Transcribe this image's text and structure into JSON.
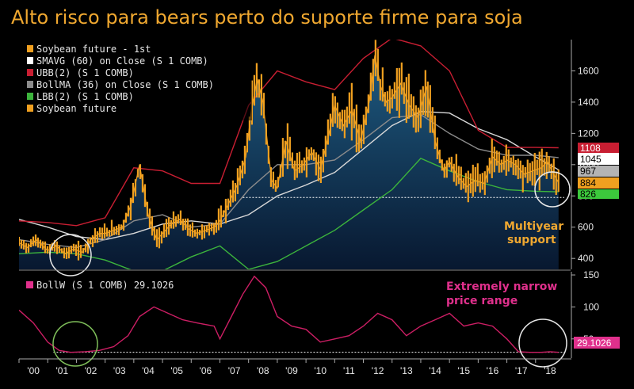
{
  "title": "Alto risco para bears perto do suporte firme para soja",
  "colors": {
    "price": "#f0a020",
    "area_top": "#1e5a80",
    "area_bottom": "#081830",
    "sma": "#d8d8d8",
    "ubb": "#c81e32",
    "bollma": "#8c8c8c",
    "lbb": "#3cb43c",
    "bollw": "#cc1e64",
    "annot_orange": "#f0a830",
    "annot_pink": "#e0308c"
  },
  "legend": {
    "items": [
      {
        "label": "Soybean future - 1st",
        "color": "#f0a020"
      },
      {
        "label": "SMAVG (60) on Close (S 1 COMB)",
        "color": "#ffffff"
      },
      {
        "label": "UBB(2) (S 1 COMB)",
        "color": "#c81e32"
      },
      {
        "label": "BollMA (36) on Close (S 1 COMB)",
        "color": "#8c8c8c"
      },
      {
        "label": "LBB(2) (S 1 COMB)",
        "color": "#3cb43c"
      },
      {
        "label": "Soybean future",
        "color": "#f0a020"
      }
    ],
    "lower": "BollW (S 1 COMB) 29.1026"
  },
  "annotations": {
    "support": [
      "Multiyear",
      "support"
    ],
    "narrow": [
      "Extremely narrow",
      "price range"
    ]
  },
  "chart_data": [
    {
      "type": "line",
      "x_labels": [
        "'00",
        "'01",
        "'02",
        "'03",
        "'04",
        "'05",
        "'06",
        "'07",
        "'08",
        "'09",
        "'10",
        "'11",
        "'12",
        "'13",
        "'14",
        "'15",
        "'16",
        "'17",
        "'18"
      ],
      "x_range": [
        2000.0,
        2019.0
      ],
      "ylim": [
        330,
        1800
      ],
      "y_ticks": [
        400,
        600,
        800,
        1000,
        1200,
        1400,
        1600
      ],
      "price_support_level": 790,
      "last_values": {
        "ubb": "1108",
        "bollma": "1045",
        "sma": "967",
        "price": "884",
        "lbb": "826"
      },
      "series": [
        {
          "name": "Soybean future - 1st",
          "x": [
            2000.0,
            2000.3,
            2000.6,
            2001.0,
            2001.3,
            2001.6,
            2001.9,
            2002.2,
            2002.5,
            2002.8,
            2003.0,
            2003.3,
            2003.6,
            2003.9,
            2004.2,
            2004.5,
            2004.8,
            2005.0,
            2005.3,
            2005.6,
            2005.9,
            2006.2,
            2006.5,
            2006.8,
            2007.0,
            2007.3,
            2007.6,
            2007.9,
            2008.1,
            2008.3,
            2008.5,
            2008.8,
            2009.0,
            2009.3,
            2009.6,
            2009.9,
            2010.2,
            2010.5,
            2010.8,
            2011.0,
            2011.3,
            2011.6,
            2011.9,
            2012.2,
            2012.4,
            2012.6,
            2012.8,
            2013.0,
            2013.3,
            2013.6,
            2013.9,
            2014.2,
            2014.5,
            2014.8,
            2015.0,
            2015.3,
            2015.6,
            2015.9,
            2016.2,
            2016.5,
            2016.8,
            2017.0,
            2017.3,
            2017.6,
            2017.9,
            2018.2,
            2018.4,
            2018.6,
            2018.8
          ],
          "values": [
            500,
            470,
            520,
            450,
            480,
            430,
            460,
            440,
            520,
            560,
            560,
            580,
            600,
            740,
            1000,
            680,
            520,
            560,
            620,
            650,
            590,
            560,
            580,
            600,
            640,
            750,
            870,
            1050,
            1350,
            1550,
            1400,
            900,
            850,
            1150,
            960,
            1000,
            1080,
            970,
            1200,
            1380,
            1250,
            1350,
            1150,
            1400,
            1700,
            1500,
            1400,
            1430,
            1520,
            1380,
            1300,
            1500,
            1150,
            960,
            1020,
            920,
            860,
            900,
            880,
            1050,
            1000,
            1030,
            1000,
            940,
            960,
            980,
            1020,
            950,
            884
          ]
        },
        {
          "name": "SMAVG (60) on Close (S 1 COMB)",
          "x": [
            2000.0,
            2001.0,
            2002.0,
            2003.0,
            2004.0,
            2005.0,
            2006.0,
            2007.0,
            2008.0,
            2009.0,
            2010.0,
            2011.0,
            2012.0,
            2013.0,
            2014.0,
            2015.0,
            2016.0,
            2017.0,
            2018.0,
            2018.8
          ],
          "values": [
            650,
            600,
            540,
            520,
            560,
            620,
            640,
            620,
            680,
            800,
            870,
            950,
            1100,
            1250,
            1340,
            1330,
            1230,
            1160,
            1050,
            967
          ]
        },
        {
          "name": "UBB(2) (S 1 COMB)",
          "x": [
            2000.0,
            2001.0,
            2002.0,
            2003.0,
            2004.0,
            2005.0,
            2006.0,
            2007.0,
            2008.0,
            2009.0,
            2010.0,
            2011.0,
            2012.0,
            2013.0,
            2014.0,
            2015.0,
            2016.0,
            2017.0,
            2018.0,
            2018.8
          ],
          "values": [
            640,
            630,
            610,
            660,
            980,
            960,
            880,
            880,
            1380,
            1600,
            1530,
            1480,
            1680,
            1810,
            1760,
            1600,
            1220,
            1110,
            1110,
            1108
          ]
        },
        {
          "name": "BollMA (36) on Close (S 1 COMB)",
          "x": [
            2000.0,
            2001.0,
            2002.0,
            2003.0,
            2004.0,
            2005.0,
            2006.0,
            2007.0,
            2008.0,
            2009.0,
            2010.0,
            2011.0,
            2012.0,
            2013.0,
            2014.0,
            2015.0,
            2016.0,
            2017.0,
            2018.0,
            2018.8
          ],
          "values": [
            520,
            490,
            470,
            520,
            640,
            680,
            600,
            620,
            840,
            1000,
            1000,
            1030,
            1160,
            1300,
            1320,
            1200,
            1100,
            1060,
            1060,
            1045
          ]
        },
        {
          "name": "LBB(2) (S 1 COMB)",
          "x": [
            2000.0,
            2001.0,
            2002.0,
            2003.0,
            2004.0,
            2005.0,
            2006.0,
            2007.0,
            2008.0,
            2009.0,
            2010.0,
            2011.0,
            2012.0,
            2013.0,
            2014.0,
            2015.0,
            2016.0,
            2017.0,
            2018.0,
            2018.8
          ],
          "values": [
            430,
            440,
            430,
            390,
            320,
            320,
            410,
            480,
            330,
            380,
            480,
            580,
            710,
            840,
            1040,
            960,
            890,
            840,
            830,
            826
          ]
        }
      ]
    },
    {
      "type": "line",
      "x_range": [
        2000.0,
        2019.0
      ],
      "ylim": [
        20,
        155
      ],
      "y_ticks": [
        50,
        100,
        150
      ],
      "last_value": "29.1026",
      "reference_level": 29.1,
      "series": [
        {
          "name": "BollW (S 1 COMB)",
          "x": [
            2000.0,
            2000.5,
            2001.0,
            2001.4,
            2001.8,
            2002.3,
            2002.8,
            2003.3,
            2003.8,
            2004.2,
            2004.7,
            2005.2,
            2005.7,
            2006.2,
            2006.8,
            2007.0,
            2007.4,
            2007.8,
            2008.2,
            2008.6,
            2009.0,
            2009.5,
            2010.0,
            2010.5,
            2011.0,
            2011.5,
            2012.0,
            2012.5,
            2013.0,
            2013.5,
            2014.0,
            2014.5,
            2015.0,
            2015.5,
            2016.0,
            2016.5,
            2017.0,
            2017.4,
            2017.8,
            2018.2,
            2018.5,
            2018.8
          ],
          "values": [
            95,
            75,
            45,
            32,
            29,
            30,
            32,
            38,
            55,
            85,
            100,
            90,
            80,
            75,
            70,
            50,
            85,
            120,
            148,
            130,
            85,
            70,
            65,
            45,
            50,
            55,
            70,
            90,
            80,
            55,
            70,
            80,
            90,
            70,
            75,
            70,
            50,
            30,
            29,
            29,
            30,
            29
          ]
        }
      ]
    }
  ]
}
